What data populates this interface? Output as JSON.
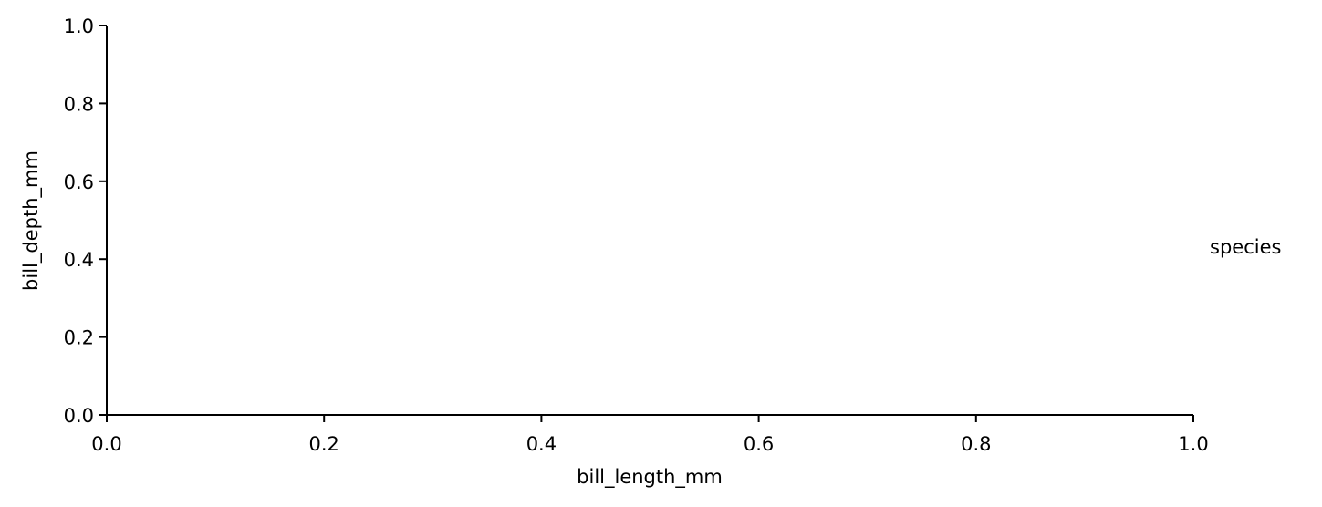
{
  "chart_data": {
    "type": "scatter",
    "title": "",
    "xlabel": "bill_length_mm",
    "ylabel": "bill_depth_mm",
    "xlim": [
      0.0,
      1.0
    ],
    "ylim": [
      0.0,
      1.0
    ],
    "x_ticks": [
      "0.0",
      "0.2",
      "0.4",
      "0.6",
      "0.8",
      "1.0"
    ],
    "y_ticks": [
      "0.0",
      "0.2",
      "0.4",
      "0.6",
      "0.8",
      "1.0"
    ],
    "grid": false,
    "series": [],
    "legend": {
      "title": "species",
      "placement": "right",
      "entries": []
    }
  }
}
